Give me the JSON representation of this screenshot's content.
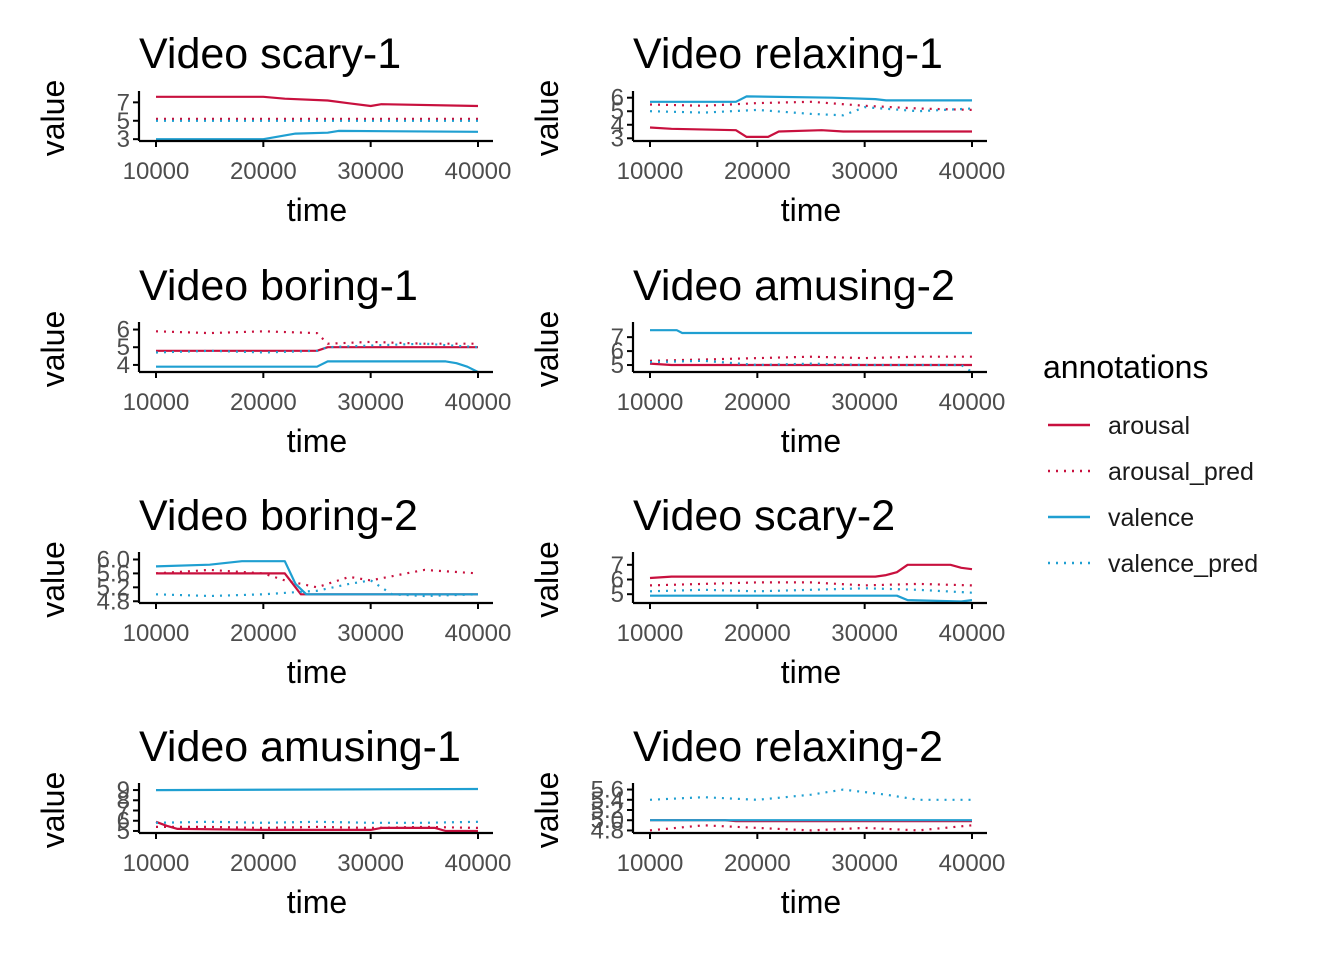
{
  "legend": {
    "title": "annotations",
    "items": [
      {
        "label": "arousal",
        "color": "#c8103e",
        "dash": "solid"
      },
      {
        "label": "arousal_pred",
        "color": "#c8103e",
        "dash": "dotted"
      },
      {
        "label": "valence",
        "color": "#1f9fd1",
        "dash": "solid"
      },
      {
        "label": "valence_pred",
        "color": "#1f9fd1",
        "dash": "dotted"
      }
    ]
  },
  "chart_data": [
    {
      "type": "line",
      "title": "Video scary-1",
      "xlabel": "time",
      "ylabel": "value",
      "xlim": [
        10000,
        40000
      ],
      "ylim": [
        2.8,
        7.8
      ],
      "xticks": [
        10000,
        20000,
        30000,
        40000
      ],
      "yticks": [
        3,
        5,
        7
      ],
      "series": [
        {
          "name": "arousal",
          "x": [
            10000,
            20000,
            22000,
            26000,
            28000,
            30000,
            31000,
            40000
          ],
          "y": [
            7.6,
            7.6,
            7.4,
            7.2,
            6.9,
            6.6,
            6.8,
            6.6
          ]
        },
        {
          "name": "arousal_pred",
          "x": [
            10000,
            40000
          ],
          "y": [
            5.2,
            5.2
          ]
        },
        {
          "name": "valence",
          "x": [
            10000,
            20000,
            23000,
            26000,
            27000,
            40000
          ],
          "y": [
            3.0,
            3.0,
            3.6,
            3.7,
            3.9,
            3.8
          ]
        },
        {
          "name": "valence_pred",
          "x": [
            10000,
            40000
          ],
          "y": [
            5.0,
            5.0
          ]
        }
      ]
    },
    {
      "type": "line",
      "title": "Video relaxing-1",
      "xlabel": "time",
      "ylabel": "value",
      "xlim": [
        10000,
        40000
      ],
      "ylim": [
        2.8,
        6.2
      ],
      "xticks": [
        10000,
        20000,
        30000,
        40000
      ],
      "yticks": [
        3,
        4,
        5,
        6
      ],
      "series": [
        {
          "name": "arousal",
          "x": [
            10000,
            12000,
            18000,
            19000,
            21000,
            22000,
            26000,
            28000,
            40000
          ],
          "y": [
            3.8,
            3.7,
            3.6,
            3.1,
            3.1,
            3.5,
            3.6,
            3.5,
            3.5
          ]
        },
        {
          "name": "arousal_pred",
          "x": [
            10000,
            15000,
            20000,
            25000,
            30000,
            35000,
            40000
          ],
          "y": [
            5.5,
            5.4,
            5.6,
            5.7,
            5.4,
            5.2,
            5.1
          ]
        },
        {
          "name": "valence",
          "x": [
            10000,
            18000,
            19000,
            27000,
            31000,
            32000,
            40000
          ],
          "y": [
            5.7,
            5.7,
            6.1,
            6.0,
            5.9,
            5.8,
            5.8
          ]
        },
        {
          "name": "valence_pred",
          "x": [
            10000,
            15000,
            20000,
            25000,
            28000,
            30000,
            35000,
            40000
          ],
          "y": [
            5.0,
            4.9,
            5.1,
            4.8,
            4.7,
            5.3,
            5.0,
            5.2
          ]
        }
      ]
    },
    {
      "type": "line",
      "title": "Video boring-1",
      "xlabel": "time",
      "ylabel": "value",
      "xlim": [
        10000,
        40000
      ],
      "ylim": [
        3.6,
        6.2
      ],
      "xticks": [
        10000,
        20000,
        30000,
        40000
      ],
      "yticks": [
        4,
        5,
        6
      ],
      "series": [
        {
          "name": "arousal",
          "x": [
            10000,
            25000,
            26000,
            40000
          ],
          "y": [
            4.8,
            4.8,
            5.0,
            5.0
          ]
        },
        {
          "name": "arousal_pred",
          "x": [
            10000,
            15000,
            20000,
            25000,
            26000,
            30000,
            35000,
            40000
          ],
          "y": [
            5.9,
            5.8,
            5.9,
            5.8,
            5.2,
            5.3,
            5.2,
            5.2
          ]
        },
        {
          "name": "valence",
          "x": [
            10000,
            25000,
            26000,
            37000,
            38000,
            39000,
            40000
          ],
          "y": [
            3.9,
            3.9,
            4.2,
            4.2,
            4.1,
            3.9,
            3.6
          ]
        },
        {
          "name": "valence_pred",
          "x": [
            10000,
            15000,
            20000,
            25000,
            26000,
            30000,
            35000,
            40000
          ],
          "y": [
            4.7,
            4.8,
            4.7,
            4.8,
            5.0,
            5.1,
            5.2,
            5.0
          ]
        }
      ]
    },
    {
      "type": "line",
      "title": "Video amusing-2",
      "xlabel": "time",
      "ylabel": "value",
      "xlim": [
        10000,
        40000
      ],
      "ylim": [
        4.5,
        7.8
      ],
      "xticks": [
        10000,
        20000,
        30000,
        40000
      ],
      "yticks": [
        5,
        6,
        7
      ],
      "series": [
        {
          "name": "arousal",
          "x": [
            10000,
            12000,
            20000,
            40000
          ],
          "y": [
            5.1,
            5.0,
            5.0,
            5.0
          ]
        },
        {
          "name": "arousal_pred",
          "x": [
            10000,
            15000,
            20000,
            25000,
            30000,
            35000,
            40000
          ],
          "y": [
            5.3,
            5.4,
            5.5,
            5.6,
            5.5,
            5.6,
            5.6
          ]
        },
        {
          "name": "valence",
          "x": [
            10000,
            12500,
            13000,
            40000
          ],
          "y": [
            7.5,
            7.5,
            7.3,
            7.3
          ]
        },
        {
          "name": "valence_pred",
          "x": [
            10000,
            15000,
            20000,
            25000,
            30000,
            35000,
            39000,
            40000
          ],
          "y": [
            5.2,
            5.3,
            5.0,
            5.1,
            5.0,
            5.0,
            5.0,
            4.5
          ]
        }
      ]
    },
    {
      "type": "line",
      "title": "Video boring-2",
      "xlabel": "time",
      "ylabel": "value",
      "xlim": [
        10000,
        40000
      ],
      "ylim": [
        4.75,
        6.1
      ],
      "xticks": [
        10000,
        20000,
        30000,
        40000
      ],
      "yticks": [
        4.8,
        5.2,
        5.6,
        6.0
      ],
      "ytick_labels": [
        "4.8",
        "5.2",
        "5.6",
        "6.0"
      ],
      "series": [
        {
          "name": "arousal",
          "x": [
            10000,
            22000,
            23500,
            40000
          ],
          "y": [
            5.6,
            5.6,
            5.0,
            5.0
          ]
        },
        {
          "name": "arousal_pred",
          "x": [
            10000,
            15000,
            20000,
            22000,
            25000,
            28000,
            30000,
            35000,
            40000
          ],
          "y": [
            5.6,
            5.7,
            5.6,
            5.4,
            5.2,
            5.5,
            5.4,
            5.7,
            5.6
          ]
        },
        {
          "name": "valence",
          "x": [
            10000,
            15000,
            18000,
            22000,
            23000,
            24000,
            40000
          ],
          "y": [
            5.8,
            5.85,
            5.95,
            5.95,
            5.3,
            5.0,
            5.0
          ]
        },
        {
          "name": "valence_pred",
          "x": [
            10000,
            15000,
            20000,
            25000,
            28000,
            30000,
            32000,
            35000,
            40000
          ],
          "y": [
            5.0,
            4.95,
            5.0,
            5.1,
            5.3,
            5.4,
            5.0,
            4.95,
            5.0
          ]
        }
      ]
    },
    {
      "type": "line",
      "title": "Video scary-2",
      "xlabel": "time",
      "ylabel": "value",
      "xlim": [
        10000,
        40000
      ],
      "ylim": [
        4.4,
        7.6
      ],
      "xticks": [
        10000,
        20000,
        30000,
        40000
      ],
      "yticks": [
        5,
        6,
        7
      ],
      "series": [
        {
          "name": "arousal",
          "x": [
            10000,
            12000,
            31000,
            32000,
            33000,
            34000,
            38000,
            39000,
            40000
          ],
          "y": [
            6.1,
            6.2,
            6.2,
            6.3,
            6.5,
            7.0,
            7.0,
            6.8,
            6.7
          ]
        },
        {
          "name": "arousal_pred",
          "x": [
            10000,
            15000,
            20000,
            25000,
            30000,
            35000,
            40000
          ],
          "y": [
            5.6,
            5.7,
            5.8,
            5.8,
            5.6,
            5.7,
            5.6
          ]
        },
        {
          "name": "valence",
          "x": [
            10000,
            20000,
            30000,
            33000,
            34000,
            39000,
            40000
          ],
          "y": [
            4.9,
            4.9,
            4.9,
            4.9,
            4.6,
            4.5,
            4.6
          ]
        },
        {
          "name": "valence_pred",
          "x": [
            10000,
            15000,
            20000,
            25000,
            30000,
            35000,
            40000
          ],
          "y": [
            5.2,
            5.3,
            5.2,
            5.3,
            5.4,
            5.3,
            5.1
          ]
        }
      ]
    },
    {
      "type": "line",
      "title": "Video amusing-1",
      "xlabel": "time",
      "ylabel": "value",
      "xlim": [
        10000,
        40000
      ],
      "ylim": [
        4.8,
        9.3
      ],
      "xticks": [
        10000,
        20000,
        30000,
        40000
      ],
      "yticks": [
        5,
        6,
        7,
        8,
        9
      ],
      "series": [
        {
          "name": "arousal",
          "x": [
            10000,
            11000,
            12000,
            20000,
            30000,
            31000,
            36000,
            37000,
            40000
          ],
          "y": [
            5.9,
            5.5,
            5.2,
            5.1,
            5.1,
            5.3,
            5.3,
            5.0,
            5.0
          ]
        },
        {
          "name": "arousal_pred",
          "x": [
            10000,
            15000,
            20000,
            25000,
            30000,
            35000,
            40000
          ],
          "y": [
            5.4,
            5.4,
            5.3,
            5.4,
            5.3,
            5.4,
            5.3
          ]
        },
        {
          "name": "valence",
          "x": [
            10000,
            40000
          ],
          "y": [
            9.0,
            9.1
          ]
        },
        {
          "name": "valence_pred",
          "x": [
            10000,
            15000,
            20000,
            25000,
            30000,
            35000,
            40000
          ],
          "y": [
            5.8,
            5.9,
            5.8,
            5.9,
            5.8,
            5.8,
            5.9
          ]
        }
      ]
    },
    {
      "type": "line",
      "title": "Video relaxing-2",
      "xlabel": "time",
      "ylabel": "value",
      "xlim": [
        10000,
        40000
      ],
      "ylim": [
        4.75,
        5.65
      ],
      "xticks": [
        10000,
        20000,
        30000,
        40000
      ],
      "yticks": [
        4.8,
        5.0,
        5.2,
        5.4,
        5.6
      ],
      "ytick_labels": [
        "4.8",
        "5.0",
        "5.2",
        "5.4",
        "5.6"
      ],
      "series": [
        {
          "name": "arousal",
          "x": [
            10000,
            17000,
            18000,
            40000
          ],
          "y": [
            5.0,
            5.0,
            4.98,
            4.98
          ]
        },
        {
          "name": "arousal_pred",
          "x": [
            10000,
            15000,
            20000,
            25000,
            30000,
            35000,
            40000
          ],
          "y": [
            4.8,
            4.9,
            4.85,
            4.8,
            4.85,
            4.8,
            4.9
          ]
        },
        {
          "name": "valence",
          "x": [
            10000,
            40000
          ],
          "y": [
            5.0,
            5.0
          ]
        },
        {
          "name": "valence_pred",
          "x": [
            10000,
            15000,
            20000,
            25000,
            28000,
            30000,
            32000,
            35000,
            40000
          ],
          "y": [
            5.4,
            5.45,
            5.4,
            5.5,
            5.6,
            5.55,
            5.5,
            5.4,
            5.4
          ]
        }
      ]
    }
  ]
}
